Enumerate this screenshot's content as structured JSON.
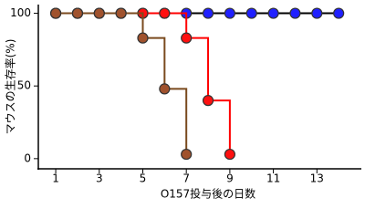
{
  "chart_data": {
    "type": "step",
    "ylabel": "マウスの生存率(%)",
    "xlabel": "O157投与後の日数",
    "xlim": [
      0.2,
      15
    ],
    "ylim": [
      -7,
      106
    ],
    "xticks": [
      1,
      3,
      5,
      7,
      9,
      11,
      13
    ],
    "yticks": [
      0,
      50,
      100
    ],
    "series": [
      {
        "color": "#2020ff",
        "line_color": "#000000",
        "x": [
          1,
          2,
          3,
          4,
          5,
          6,
          7,
          8,
          9,
          10,
          11,
          12,
          13,
          14
        ],
        "values": [
          100,
          100,
          100,
          100,
          100,
          100,
          100,
          100,
          100,
          100,
          100,
          100,
          100,
          100
        ]
      },
      {
        "color": "#ff1010",
        "line_color": "#ff0000",
        "x": [
          1,
          2,
          3,
          4,
          5,
          6,
          7,
          8,
          9
        ],
        "values": [
          100,
          100,
          100,
          100,
          100,
          100,
          83,
          40,
          3
        ]
      },
      {
        "color": "#a0522d",
        "line_color": "#7a4a1e",
        "x": [
          1,
          2,
          3,
          4,
          5,
          6,
          7
        ],
        "values": [
          100,
          100,
          100,
          100,
          83,
          48,
          3
        ]
      }
    ]
  }
}
